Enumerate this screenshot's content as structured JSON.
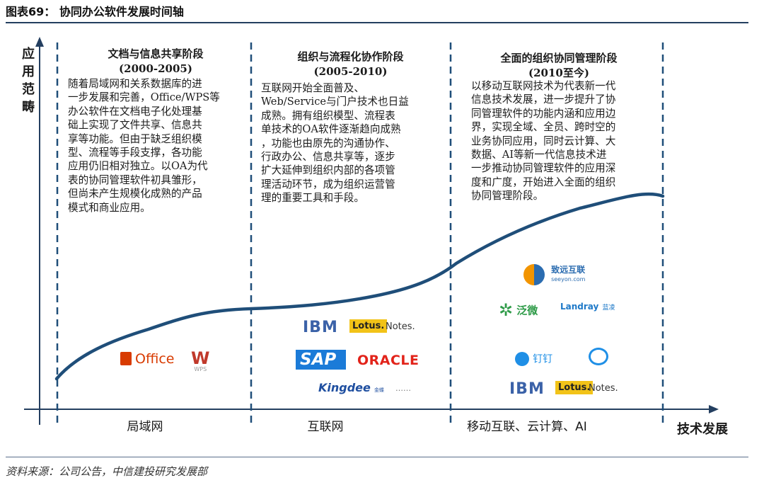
{
  "figure_title": "图表69： 协同办公软件发展时间轴",
  "source": "资料来源：公司公告，中信建投研究发展部",
  "y_axis_label": "应用范畴",
  "x_axis_title": "技术发展",
  "stages": [
    {
      "title": "文档与信息共享阶段",
      "period": "(2000-2005)",
      "x_label": "局域网",
      "description_lines": [
        "随着局域网和关系数据库的进",
        "一步发展和完善，Office/WPS等",
        "办公软件在文档电子化处理基",
        "础上实现了文件共享、信息共",
        "享等功能。但由于缺乏组织模",
        "型、流程等手段支撑，各功能",
        "应用仍旧相对独立。以OA为代",
        "表的协同管理软件初具雏形，",
        "但尚未产生规模化成熟的产品",
        "模式和商业应用。"
      ],
      "logos": [
        "Office",
        "WPS"
      ]
    },
    {
      "title": "组织与流程化协作阶段",
      "period": "(2005-2010)",
      "x_label": "互联网",
      "description_lines": [
        "互联网开始全面普及、",
        "Web/Service与门户技术也日益",
        "成熟。拥有组织模型、流程表",
        "单技术的OA软件逐渐趋向成熟",
        "，功能也由原先的沟通协作、",
        "行政办公、信息共享等，逐步",
        "扩大延伸到组织内部的各项管",
        "理活动环节，成为组织运营管",
        "理的重要工具和手段。"
      ],
      "logos": [
        "IBM",
        "Lotus.",
        "Notes.",
        "SAP",
        "ORACLE",
        "Kingdee",
        "金蝶",
        "……"
      ]
    },
    {
      "title": "全面的组织协同管理阶段",
      "period": "(2010至今)",
      "x_label": "移动互联、云计算、AI",
      "description_lines": [
        "以移动互联网技术为代表新一代",
        "信息技术发展，进一步提升了协",
        "同管理软件的功能内涵和应用边",
        "界，实现全域、全员、跨时空的",
        "业务协同应用，同时云计算、大",
        "数据、AI等新一代信息技术进",
        "一步推动协同管理软件的应用深",
        "度和广度，开始进入全面的组织",
        "协同管理阶段。"
      ],
      "logos": [
        "致远互联",
        "seeyon.com",
        "泛微",
        "Landray",
        "蓝凌",
        "钉钉",
        "IBM",
        "Lotus.",
        "Notes."
      ]
    }
  ],
  "colors": {
    "accent": "#1f4e79",
    "curve": "#1f4e79",
    "axis": "#243f60",
    "office_red": "#d83b01",
    "wps_red": "#c0392b",
    "ibm_blue": "#3b62a8",
    "lotus_yellow": "#f2c318",
    "sap_blue": "#1b7bd8",
    "oracle_red": "#e2231a",
    "kingdee_blue": "#1f4fa0",
    "seeyon_blue": "#2b6cb0",
    "seeyon_orange": "#f29400",
    "weaver_green": "#2e9b48",
    "landray_blue": "#1e79c8",
    "dingtalk_blue": "#1f8fe6"
  }
}
